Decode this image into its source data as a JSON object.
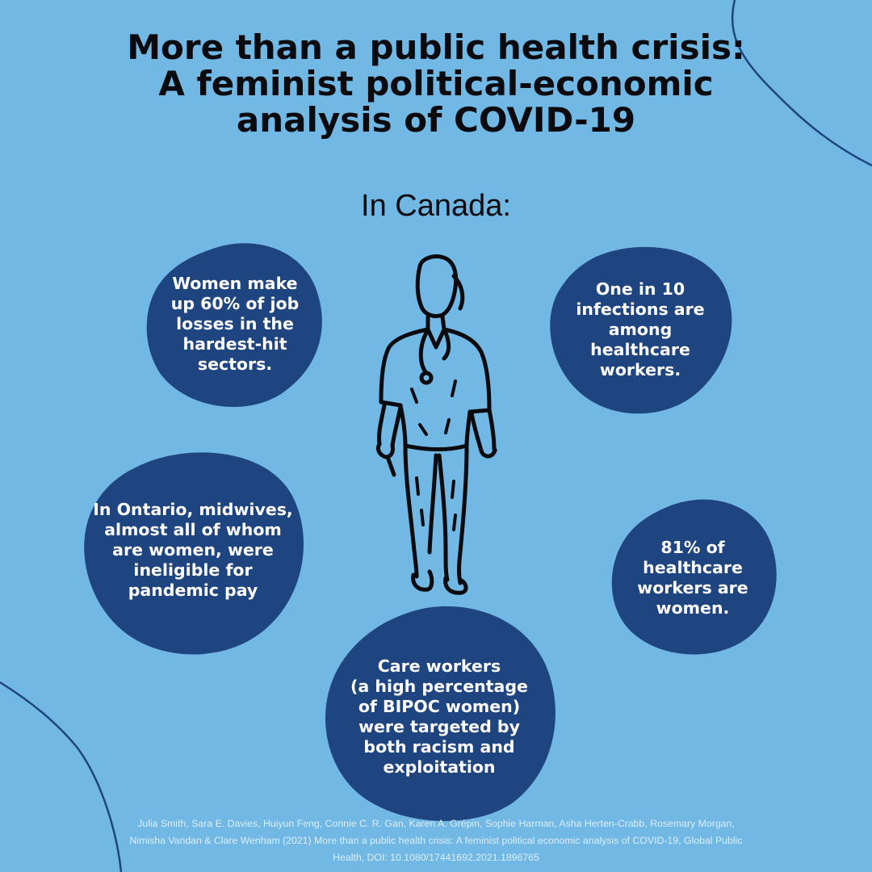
{
  "title_lines": [
    "More than a public health crisis:",
    "A feminist political-economic",
    "analysis of COVID-19"
  ],
  "subtitle": "In Canada:",
  "colors": {
    "background": "#72b8e4",
    "blob": "#1f4580",
    "text_dark": "#0b0b0f",
    "text_light": "#ffffff"
  },
  "facts": {
    "job_losses": [
      "Women make",
      "up 60% of job",
      "losses in the",
      "hardest-hit",
      "sectors."
    ],
    "infections": [
      "One in 10",
      "infections are",
      "among",
      "healthcare",
      "workers."
    ],
    "midwives": [
      "In Ontario, midwives,",
      "almost all of whom",
      "are women, were",
      "ineligible for",
      "pandemic pay"
    ],
    "healthcare_women": [
      "81% of",
      "healthcare",
      "workers are",
      "women."
    ],
    "care_workers": [
      "Care workers",
      "(a high percentage",
      "of BIPOC women)",
      "were targeted by",
      "both racism and",
      "exploitation"
    ]
  },
  "figure_icon": "nurse-walking-icon",
  "citation_lines": [
    "Julia Smith, Sara E. Davies, Huiyun Feng, Connie C. R. Gan, Karen A. Grépin, Sophie Harman, Asha Herten-Crabb, Rosemary Morgan,",
    "Nimisha Vandan & Clare Wenham (2021) More than a public health crisis: A feminist political economic analysis of COVID-19, Global Public",
    "Health, DOI: 10.1080/17441692.2021.1896765"
  ]
}
